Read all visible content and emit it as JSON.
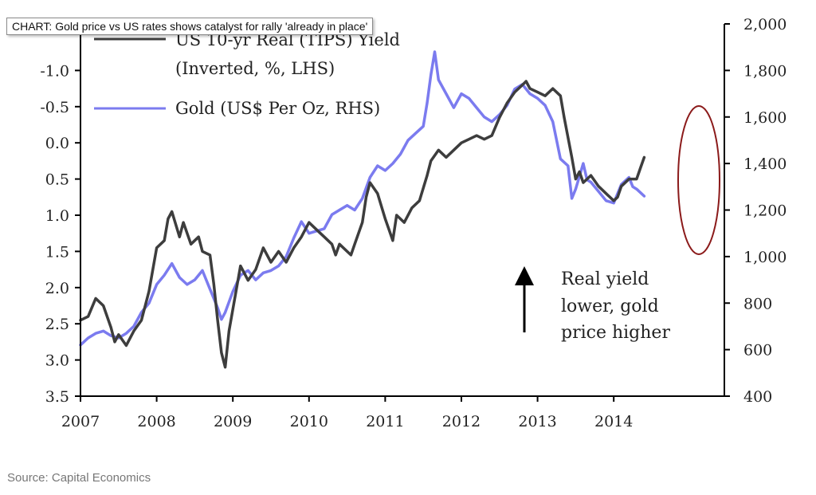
{
  "tooltip": "CHART: Gold price vs US rates shows catalyst for rally 'already in place'",
  "source": "Source: Capital Economics",
  "chart_data": {
    "type": "line",
    "x_ticks": [
      "2007",
      "2008",
      "2009",
      "2010",
      "2011",
      "2012",
      "2013",
      "2014"
    ],
    "y_left": {
      "range": [
        -1.5,
        3.5
      ],
      "inverted": true,
      "ticks": [
        "-1.0",
        "-0.5",
        "0.0",
        "0.5",
        "1.0",
        "1.5",
        "2.0",
        "2.5",
        "3.0",
        "3.5"
      ]
    },
    "y_right": {
      "range": [
        400,
        2000
      ],
      "ticks": [
        "400",
        "600",
        "800",
        "1,000",
        "1,200",
        "1,400",
        "1,600",
        "1,800",
        "2,000"
      ]
    },
    "grid": false,
    "legend_position": "top-left",
    "series": [
      {
        "name_line1": "US 10-yr Real (TIPS) Yield",
        "name_line2": "(Inverted, %, LHS)",
        "axis": "left",
        "color": "#3d3d3d",
        "points": [
          [
            2007.0,
            2.45
          ],
          [
            2007.1,
            2.4
          ],
          [
            2007.2,
            2.15
          ],
          [
            2007.3,
            2.25
          ],
          [
            2007.4,
            2.55
          ],
          [
            2007.45,
            2.75
          ],
          [
            2007.5,
            2.65
          ],
          [
            2007.6,
            2.8
          ],
          [
            2007.7,
            2.6
          ],
          [
            2007.8,
            2.45
          ],
          [
            2007.9,
            2.05
          ],
          [
            2008.0,
            1.45
          ],
          [
            2008.1,
            1.35
          ],
          [
            2008.15,
            1.05
          ],
          [
            2008.2,
            0.95
          ],
          [
            2008.3,
            1.3
          ],
          [
            2008.35,
            1.1
          ],
          [
            2008.45,
            1.4
          ],
          [
            2008.55,
            1.3
          ],
          [
            2008.6,
            1.5
          ],
          [
            2008.7,
            1.55
          ],
          [
            2008.75,
            1.95
          ],
          [
            2008.8,
            2.45
          ],
          [
            2008.85,
            2.9
          ],
          [
            2008.9,
            3.1
          ],
          [
            2008.95,
            2.6
          ],
          [
            2009.0,
            2.3
          ],
          [
            2009.05,
            2.0
          ],
          [
            2009.1,
            1.7
          ],
          [
            2009.2,
            1.9
          ],
          [
            2009.3,
            1.75
          ],
          [
            2009.4,
            1.45
          ],
          [
            2009.5,
            1.65
          ],
          [
            2009.6,
            1.5
          ],
          [
            2009.7,
            1.65
          ],
          [
            2009.8,
            1.45
          ],
          [
            2009.9,
            1.3
          ],
          [
            2010.0,
            1.1
          ],
          [
            2010.1,
            1.2
          ],
          [
            2010.2,
            1.3
          ],
          [
            2010.3,
            1.4
          ],
          [
            2010.35,
            1.55
          ],
          [
            2010.4,
            1.4
          ],
          [
            2010.5,
            1.5
          ],
          [
            2010.55,
            1.55
          ],
          [
            2010.6,
            1.4
          ],
          [
            2010.7,
            1.1
          ],
          [
            2010.75,
            0.75
          ],
          [
            2010.8,
            0.55
          ],
          [
            2010.9,
            0.7
          ],
          [
            2011.0,
            1.05
          ],
          [
            2011.05,
            1.2
          ],
          [
            2011.1,
            1.35
          ],
          [
            2011.15,
            1.0
          ],
          [
            2011.25,
            1.1
          ],
          [
            2011.35,
            0.9
          ],
          [
            2011.45,
            0.8
          ],
          [
            2011.55,
            0.45
          ],
          [
            2011.6,
            0.25
          ],
          [
            2011.7,
            0.1
          ],
          [
            2011.8,
            0.2
          ],
          [
            2011.9,
            0.1
          ],
          [
            2012.0,
            0.0
          ],
          [
            2012.1,
            -0.05
          ],
          [
            2012.2,
            -0.1
          ],
          [
            2012.3,
            -0.05
          ],
          [
            2012.4,
            -0.1
          ],
          [
            2012.5,
            -0.35
          ],
          [
            2012.6,
            -0.55
          ],
          [
            2012.7,
            -0.7
          ],
          [
            2012.8,
            -0.8
          ],
          [
            2012.85,
            -0.85
          ],
          [
            2012.9,
            -0.75
          ],
          [
            2013.0,
            -0.7
          ],
          [
            2013.1,
            -0.65
          ],
          [
            2013.2,
            -0.75
          ],
          [
            2013.3,
            -0.65
          ],
          [
            2013.35,
            -0.35
          ],
          [
            2013.45,
            0.2
          ],
          [
            2013.5,
            0.5
          ],
          [
            2013.55,
            0.4
          ],
          [
            2013.6,
            0.55
          ],
          [
            2013.7,
            0.45
          ],
          [
            2013.8,
            0.6
          ],
          [
            2013.9,
            0.7
          ],
          [
            2014.0,
            0.8
          ],
          [
            2014.05,
            0.75
          ],
          [
            2014.1,
            0.6
          ],
          [
            2014.2,
            0.5
          ],
          [
            2014.3,
            0.5
          ],
          [
            2014.35,
            0.35
          ],
          [
            2014.4,
            0.2
          ]
        ]
      },
      {
        "name_line1": "Gold (US$ Per Oz, RHS)",
        "name_line2": "",
        "axis": "right",
        "color": "#7b7bef",
        "points": [
          [
            2007.0,
            620
          ],
          [
            2007.1,
            650
          ],
          [
            2007.2,
            670
          ],
          [
            2007.3,
            680
          ],
          [
            2007.4,
            660
          ],
          [
            2007.5,
            650
          ],
          [
            2007.6,
            670
          ],
          [
            2007.7,
            700
          ],
          [
            2007.8,
            760
          ],
          [
            2007.9,
            800
          ],
          [
            2008.0,
            880
          ],
          [
            2008.1,
            920
          ],
          [
            2008.2,
            970
          ],
          [
            2008.3,
            910
          ],
          [
            2008.4,
            880
          ],
          [
            2008.5,
            900
          ],
          [
            2008.6,
            940
          ],
          [
            2008.7,
            860
          ],
          [
            2008.8,
            780
          ],
          [
            2008.85,
            730
          ],
          [
            2008.9,
            760
          ],
          [
            2009.0,
            850
          ],
          [
            2009.1,
            920
          ],
          [
            2009.2,
            940
          ],
          [
            2009.3,
            900
          ],
          [
            2009.4,
            930
          ],
          [
            2009.5,
            940
          ],
          [
            2009.6,
            960
          ],
          [
            2009.7,
            1000
          ],
          [
            2009.8,
            1080
          ],
          [
            2009.9,
            1150
          ],
          [
            2010.0,
            1100
          ],
          [
            2010.1,
            1110
          ],
          [
            2010.2,
            1120
          ],
          [
            2010.3,
            1180
          ],
          [
            2010.4,
            1200
          ],
          [
            2010.5,
            1220
          ],
          [
            2010.6,
            1200
          ],
          [
            2010.7,
            1250
          ],
          [
            2010.8,
            1340
          ],
          [
            2010.9,
            1390
          ],
          [
            2011.0,
            1370
          ],
          [
            2011.1,
            1400
          ],
          [
            2011.2,
            1440
          ],
          [
            2011.3,
            1500
          ],
          [
            2011.4,
            1530
          ],
          [
            2011.5,
            1560
          ],
          [
            2011.55,
            1660
          ],
          [
            2011.6,
            1780
          ],
          [
            2011.65,
            1880
          ],
          [
            2011.7,
            1760
          ],
          [
            2011.8,
            1700
          ],
          [
            2011.9,
            1640
          ],
          [
            2012.0,
            1700
          ],
          [
            2012.1,
            1680
          ],
          [
            2012.2,
            1640
          ],
          [
            2012.3,
            1600
          ],
          [
            2012.4,
            1580
          ],
          [
            2012.5,
            1610
          ],
          [
            2012.6,
            1650
          ],
          [
            2012.7,
            1720
          ],
          [
            2012.8,
            1740
          ],
          [
            2012.9,
            1700
          ],
          [
            2013.0,
            1680
          ],
          [
            2013.1,
            1650
          ],
          [
            2013.2,
            1580
          ],
          [
            2013.3,
            1420
          ],
          [
            2013.4,
            1390
          ],
          [
            2013.45,
            1250
          ],
          [
            2013.5,
            1290
          ],
          [
            2013.6,
            1400
          ],
          [
            2013.65,
            1330
          ],
          [
            2013.7,
            1320
          ],
          [
            2013.8,
            1280
          ],
          [
            2013.9,
            1240
          ],
          [
            2014.0,
            1230
          ],
          [
            2014.1,
            1310
          ],
          [
            2014.2,
            1340
          ],
          [
            2014.25,
            1300
          ],
          [
            2014.3,
            1290
          ],
          [
            2014.4,
            1260
          ]
        ]
      }
    ],
    "annotations": [
      {
        "text_lines": [
          "Real yield",
          "lower, gold",
          "price higher"
        ]
      }
    ]
  }
}
